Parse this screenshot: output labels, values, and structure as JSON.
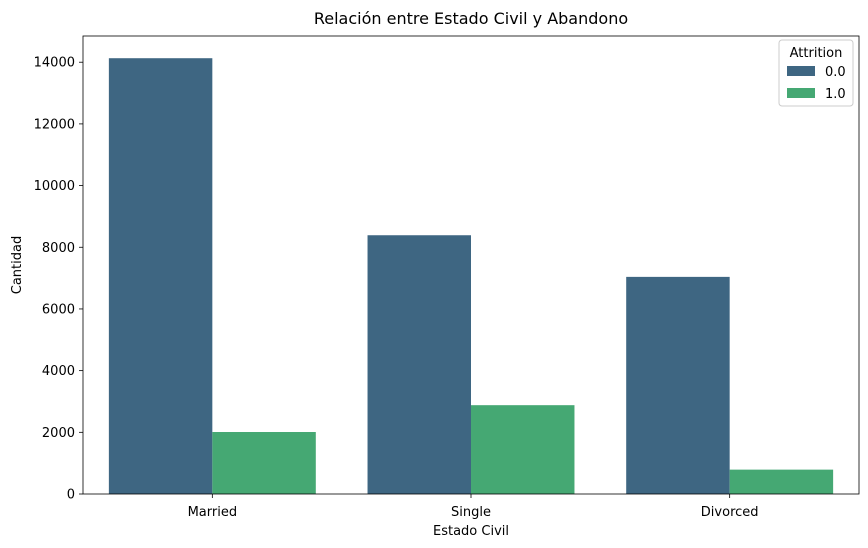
{
  "chart_data": {
    "type": "bar",
    "title": "Relación entre Estado Civil y Abandono",
    "xlabel": "Estado Civil",
    "ylabel": "Cantidad",
    "categories": [
      "Married",
      "Single",
      "Divorced"
    ],
    "series": [
      {
        "name": "0.0",
        "values": [
          14130,
          8390,
          7040
        ],
        "color": "#3e6682"
      },
      {
        "name": "1.0",
        "values": [
          2010,
          2880,
          790
        ],
        "color": "#45a873"
      }
    ],
    "ylim": [
      0,
      14850
    ],
    "yticks": [
      0,
      2000,
      4000,
      6000,
      8000,
      10000,
      12000,
      14000
    ],
    "legend": {
      "title": "Attrition",
      "position": "top-right"
    },
    "grid": false
  }
}
